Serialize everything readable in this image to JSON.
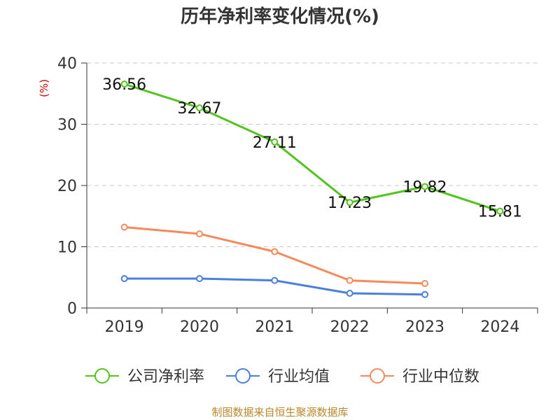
{
  "chart_data": {
    "type": "line",
    "title": "历年净利率变化情况(%)",
    "ylabel": "(%)",
    "xlabel": "",
    "ylim": [
      0,
      40
    ],
    "yticks": [
      0,
      10,
      20,
      30,
      40
    ],
    "categories": [
      "2019",
      "2020",
      "2021",
      "2022",
      "2023",
      "2024"
    ],
    "grid": true,
    "legend_position": "bottom",
    "series": [
      {
        "name": "公司净利率",
        "color": "#52c41a",
        "values": [
          36.56,
          32.67,
          27.11,
          17.23,
          19.82,
          15.81
        ],
        "labels": [
          "36.56",
          "32.67",
          "27.11",
          "17.23",
          "19.82",
          "15.81"
        ]
      },
      {
        "name": "行业均值",
        "color": "#4a7fdb",
        "values": [
          4.8,
          4.8,
          4.5,
          2.4,
          2.2,
          null
        ]
      },
      {
        "name": "行业中位数",
        "color": "#f5895a",
        "values": [
          13.2,
          12.1,
          9.2,
          4.5,
          4.0,
          null
        ]
      }
    ]
  },
  "source": "制图数据来自恒生聚源数据库"
}
